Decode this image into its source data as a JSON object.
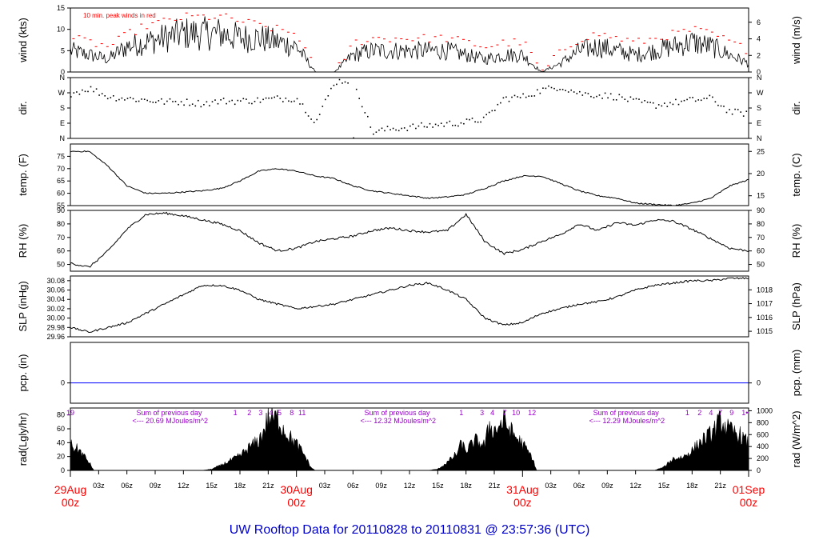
{
  "title": "UW Rooftop Data for 20110828  to  20110831 @ 23:57:36  (UTC)",
  "colors": {
    "line": "#000000",
    "peak": "#ff0000",
    "zero": "#0000ff",
    "annot": "#9900cc",
    "title": "#0000cc",
    "date": "#ff0000"
  },
  "xaxis": {
    "hour_ticks": [
      "03z",
      "06z",
      "09z",
      "12z",
      "15z",
      "18z",
      "21z",
      "03z",
      "06z",
      "09z",
      "12z",
      "15z",
      "18z",
      "21z",
      "03z",
      "06z",
      "09z",
      "12z",
      "15z",
      "18z",
      "21z"
    ],
    "hour_tick_hours": [
      3,
      6,
      9,
      12,
      15,
      18,
      21,
      27,
      30,
      33,
      36,
      39,
      42,
      45,
      51,
      54,
      57,
      60,
      63,
      66,
      69
    ],
    "day_labels": [
      {
        "hour": 0,
        "date": "29Aug",
        "time": "00z"
      },
      {
        "hour": 24,
        "date": "30Aug",
        "time": "00z"
      },
      {
        "hour": 48,
        "date": "31Aug",
        "time": "00z"
      },
      {
        "hour": 72,
        "date": "01Sep",
        "time": "00z"
      }
    ],
    "range_hours": [
      0,
      72
    ]
  },
  "chart_data": [
    {
      "type": "line",
      "id": "wind",
      "ylabel_left": "wind (kts)",
      "ylabel_right": "wind (m/s)",
      "ylim": [
        0,
        15
      ],
      "left_ticks": [
        0,
        5,
        10,
        15
      ],
      "right_ticks": [
        0,
        2,
        4,
        6
      ],
      "right_ylim": [
        0,
        7.72
      ],
      "annotation": "10 min. peak winds in red",
      "series": [
        {
          "name": "wind",
          "x": [
            0,
            2,
            4,
            6,
            8,
            10,
            12,
            14,
            16,
            18,
            20,
            22,
            24,
            26,
            28,
            30,
            32,
            34,
            36,
            38,
            40,
            42,
            44,
            46,
            48,
            50,
            52,
            54,
            56,
            58,
            60,
            62,
            64,
            66,
            68,
            70,
            72
          ],
          "values": [
            5,
            4,
            3,
            6,
            7,
            8,
            9,
            9,
            9,
            8,
            8,
            7,
            6,
            0,
            0,
            4,
            5,
            5,
            5,
            5,
            5,
            4,
            3,
            4,
            4,
            0,
            2,
            5,
            6,
            5,
            4,
            5,
            6,
            7,
            6,
            4,
            2
          ]
        },
        {
          "name": "peak",
          "x": [
            0,
            2,
            4,
            6,
            8,
            10,
            12,
            14,
            16,
            18,
            20,
            22,
            24,
            26,
            28,
            30,
            32,
            34,
            36,
            38,
            40,
            42,
            44,
            46,
            48,
            50,
            52,
            54,
            56,
            58,
            60,
            62,
            64,
            66,
            68,
            70,
            72
          ],
          "values": [
            8,
            7,
            6,
            9,
            11,
            12,
            13,
            13,
            13,
            12,
            11,
            10,
            9,
            0,
            0,
            7,
            8,
            8,
            8,
            8,
            8,
            7,
            6,
            7,
            7,
            0,
            5,
            8,
            9,
            8,
            7,
            8,
            9,
            10,
            9,
            7,
            5
          ]
        }
      ]
    },
    {
      "type": "scatter",
      "id": "dir",
      "ylabel_left": "dir.",
      "ylabel_right": "dir.",
      "ylim": [
        0,
        360
      ],
      "left_ticks": [
        "N",
        "E",
        "S",
        "W",
        "N"
      ],
      "right_ticks": [
        "N",
        "E",
        "S",
        "W",
        "N"
      ],
      "series": [
        {
          "name": "dir",
          "x": [
            0,
            2,
            4,
            6,
            8,
            10,
            12,
            14,
            16,
            18,
            20,
            22,
            24,
            26,
            28,
            30,
            32,
            34,
            36,
            38,
            40,
            42,
            44,
            46,
            48,
            50,
            52,
            54,
            56,
            58,
            60,
            62,
            64,
            66,
            68,
            70,
            72
          ],
          "values": [
            270,
            300,
            250,
            240,
            230,
            220,
            220,
            210,
            225,
            225,
            230,
            240,
            240,
            100,
            340,
            350,
            40,
            60,
            70,
            80,
            90,
            100,
            120,
            240,
            250,
            290,
            310,
            270,
            260,
            250,
            220,
            200,
            215,
            230,
            240,
            160,
            150
          ]
        }
      ]
    },
    {
      "type": "line",
      "id": "temp",
      "ylabel_left": "temp. (F)",
      "ylabel_right": "temp. (C)",
      "ylim": [
        55,
        80
      ],
      "left_ticks": [
        55,
        60,
        65,
        70,
        75
      ],
      "right_ticks": [
        15,
        20,
        25
      ],
      "right_ylim": [
        12.78,
        26.67
      ],
      "series": [
        {
          "name": "temp",
          "x": [
            0,
            2,
            4,
            6,
            8,
            10,
            12,
            14,
            16,
            18,
            20,
            22,
            24,
            26,
            28,
            30,
            32,
            34,
            36,
            38,
            40,
            42,
            44,
            46,
            48,
            50,
            52,
            54,
            56,
            58,
            60,
            62,
            64,
            66,
            68,
            70,
            72
          ],
          "values": [
            77,
            77,
            71,
            63,
            60,
            60,
            60.5,
            61,
            62,
            65,
            69,
            70,
            69,
            67,
            66,
            63,
            61,
            60,
            59,
            58,
            58.5,
            59.5,
            62,
            65,
            67,
            67,
            64,
            61,
            59,
            58,
            56,
            55.5,
            55,
            56,
            58,
            63,
            65.5
          ]
        }
      ]
    },
    {
      "type": "line",
      "id": "rh",
      "ylabel_left": "RH (%)",
      "ylabel_right": "RH (%)",
      "ylim": [
        45,
        90
      ],
      "left_ticks": [
        50,
        60,
        70,
        80,
        90
      ],
      "right_ticks": [
        50,
        60,
        70,
        80,
        90
      ],
      "right_ylim": [
        45,
        90
      ],
      "series": [
        {
          "name": "rh",
          "x": [
            0,
            2,
            4,
            6,
            8,
            10,
            12,
            14,
            16,
            18,
            20,
            22,
            24,
            26,
            28,
            30,
            32,
            34,
            36,
            38,
            40,
            42,
            44,
            46,
            48,
            50,
            52,
            54,
            56,
            58,
            60,
            62,
            64,
            66,
            68,
            70,
            72
          ],
          "values": [
            51,
            48,
            60,
            76,
            87,
            88,
            86,
            83,
            80,
            75,
            66,
            60,
            62,
            67,
            69,
            71,
            75,
            77,
            75,
            74,
            75,
            87,
            67,
            58,
            61,
            67,
            72,
            80,
            75,
            81,
            79,
            83,
            82,
            76,
            69,
            62,
            60
          ]
        }
      ]
    },
    {
      "type": "line",
      "id": "slp",
      "ylabel_left": "SLP (inHg)",
      "ylabel_right": "SLP (hPa)",
      "ylim": [
        29.96,
        30.09
      ],
      "left_ticks": [
        29.96,
        29.98,
        30.0,
        30.02,
        30.04,
        30.06,
        30.08
      ],
      "right_ticks": [
        1015,
        1016,
        1017,
        1018
      ],
      "right_ylim": [
        1014.6,
        1019.0
      ],
      "series": [
        {
          "name": "slp",
          "x": [
            0,
            2,
            4,
            6,
            8,
            10,
            12,
            14,
            16,
            18,
            20,
            22,
            24,
            26,
            28,
            30,
            32,
            34,
            36,
            38,
            40,
            42,
            44,
            46,
            48,
            50,
            52,
            54,
            56,
            58,
            60,
            62,
            64,
            66,
            68,
            70,
            72
          ],
          "values": [
            29.98,
            29.97,
            29.98,
            29.99,
            30.01,
            30.03,
            30.05,
            30.07,
            30.07,
            30.06,
            30.04,
            30.03,
            30.02,
            30.025,
            30.03,
            30.04,
            30.05,
            30.06,
            30.07,
            30.075,
            30.06,
            30.04,
            30.0,
            29.985,
            29.99,
            30.01,
            30.02,
            30.03,
            30.035,
            30.045,
            30.06,
            30.07,
            30.075,
            30.08,
            30.08,
            30.085,
            30.085
          ]
        }
      ]
    },
    {
      "type": "line",
      "id": "pcp",
      "ylabel_left": "pcp. (in)",
      "ylabel_right": "pcp. (mm)",
      "ylim": [
        -0.5,
        1
      ],
      "left_ticks": [
        0
      ],
      "right_ticks": [
        0
      ],
      "right_ylim": [
        -12.7,
        25.4
      ],
      "series": [
        {
          "name": "pcp",
          "x": [
            0,
            72
          ],
          "values": [
            0,
            0
          ]
        }
      ]
    },
    {
      "type": "area",
      "id": "rad",
      "ylabel_left": "rad(Lgly/hr)",
      "ylabel_right": "rad (W/m^2)",
      "ylim": [
        0,
        90
      ],
      "left_ticks": [
        0,
        20,
        40,
        60,
        80
      ],
      "right_ticks": [
        0,
        200,
        400,
        600,
        800,
        1000
      ],
      "right_ylim": [
        0,
        1046
      ],
      "hour_labels": [
        {
          "text": "19",
          "hour": 0
        },
        {
          "text": "1",
          "hour": 17.5
        },
        {
          "text": "2",
          "hour": 19
        },
        {
          "text": "3",
          "hour": 20.2
        },
        {
          "text": "4",
          "hour": 21.3
        },
        {
          "text": "5",
          "hour": 22.2
        },
        {
          "text": "8",
          "hour": 23.5
        },
        {
          "text": "11",
          "hour": 24.6
        },
        {
          "text": "1",
          "hour": 41.5
        },
        {
          "text": "3",
          "hour": 43.7
        },
        {
          "text": "4",
          "hour": 44.8
        },
        {
          "text": "7",
          "hour": 46.1
        },
        {
          "text": "10",
          "hour": 47.3
        },
        {
          "text": "12",
          "hour": 49
        },
        {
          "text": "1",
          "hour": 65.5
        },
        {
          "text": "2",
          "hour": 66.8
        },
        {
          "text": "4",
          "hour": 68
        },
        {
          "text": "7",
          "hour": 69
        },
        {
          "text": "9",
          "hour": 70.2
        },
        {
          "text": "1•",
          "hour": 71.6
        }
      ],
      "sums": [
        {
          "hour": 7,
          "line1": "Sum of previous day",
          "line2": "<--- 20.69 MJoules/m^2"
        },
        {
          "hour": 31.2,
          "line1": "Sum of previous day",
          "line2": "<--- 12.32 MJoules/m^2"
        },
        {
          "hour": 55.5,
          "line1": "Sum of previous day",
          "line2": "<--- 12.29 MJoules/m^2"
        }
      ],
      "series": [
        {
          "name": "rad",
          "x": [
            0,
            1,
            2,
            2.5,
            14,
            15,
            16,
            17,
            18,
            19,
            20,
            20.5,
            21,
            22,
            23,
            24,
            25,
            25.5,
            26,
            38,
            39,
            40,
            41,
            41.5,
            42,
            43,
            44,
            44.5,
            45,
            46,
            47,
            48,
            49,
            49.5,
            62,
            63,
            64,
            65,
            66,
            67,
            68,
            69,
            70,
            71,
            72
          ],
          "values": [
            38,
            30,
            12,
            0,
            0,
            2,
            8,
            15,
            22,
            35,
            45,
            60,
            80,
            78,
            55,
            40,
            20,
            5,
            0,
            0,
            2,
            12,
            25,
            40,
            30,
            45,
            38,
            70,
            60,
            75,
            55,
            40,
            20,
            0,
            0,
            5,
            18,
            20,
            30,
            45,
            55,
            75,
            60,
            55,
            40
          ]
        }
      ]
    }
  ]
}
